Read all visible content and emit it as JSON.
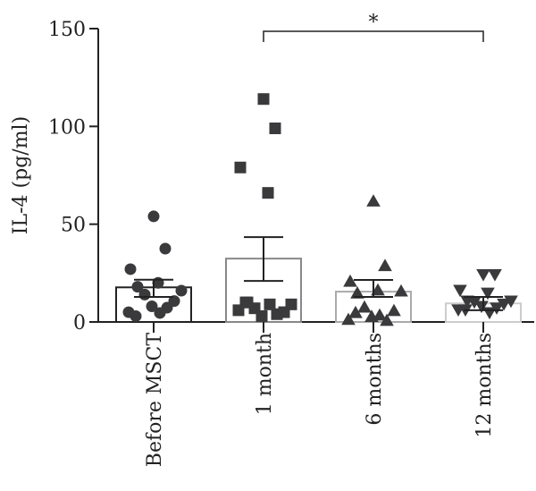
{
  "chart_data": {
    "type": "bar",
    "title": "",
    "xlabel": "",
    "ylabel": "IL-4 (pg/ml)",
    "ylim": [
      0,
      150
    ],
    "yticks": [
      0,
      50,
      100,
      150
    ],
    "grid": false,
    "categories": [
      "Before MSCT",
      "1 month",
      "6 months",
      "12 months"
    ],
    "means": [
      17.7,
      32.4,
      15.5,
      9.5
    ],
    "error_upper": [
      21.6,
      43.4,
      21.5,
      12.8
    ],
    "error_lower": [
      12.8,
      21.0,
      12.8,
      6.0
    ],
    "bar_colors": [
      "#222222",
      "#888888",
      "#aaaaaa",
      "#cccccc"
    ],
    "marker_color": "#3a3a3c",
    "markers": [
      "circle",
      "square",
      "triangle-up",
      "triangle-down"
    ],
    "points": [
      [
        54,
        37.5,
        27,
        20,
        18,
        16,
        14,
        10.7,
        8,
        7.3,
        5,
        4.6,
        3
      ],
      [
        114,
        99,
        79,
        66,
        10,
        9,
        7,
        5,
        3,
        4,
        6,
        9,
        10
      ],
      [
        62,
        29,
        21,
        16.5,
        15,
        16,
        7.8,
        6,
        3,
        1,
        1.5,
        3.7,
        5
      ],
      [
        24,
        24,
        16,
        14.6,
        10.5,
        10.5,
        10,
        9,
        7.8,
        7,
        6,
        4.6,
        6
      ]
    ],
    "significance": [
      {
        "from": "1 month",
        "to": "12 months",
        "label": "*"
      }
    ]
  }
}
